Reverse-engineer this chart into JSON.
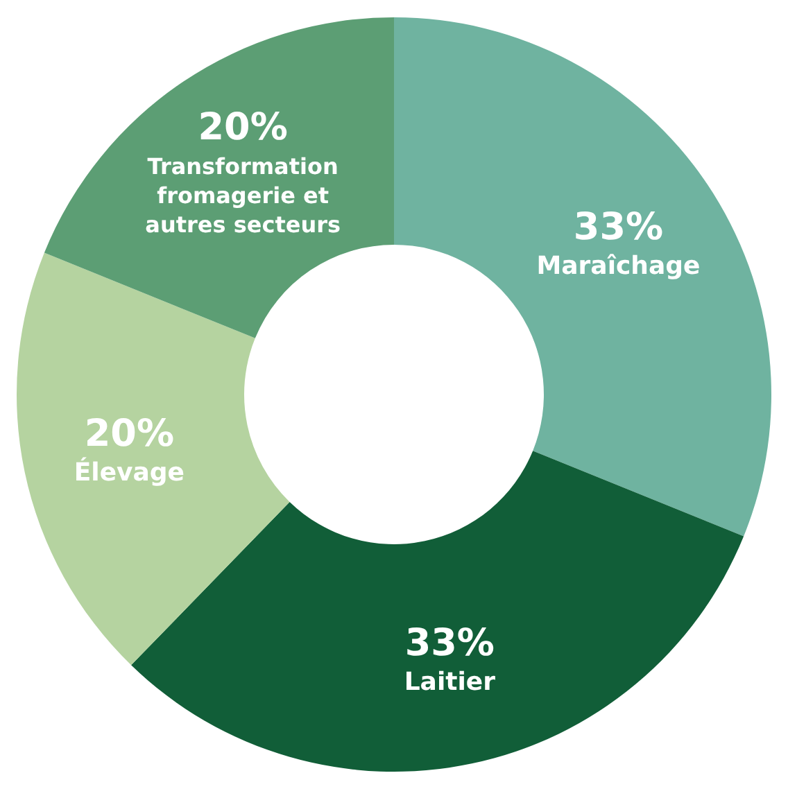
{
  "chart_data": {
    "type": "donut",
    "categories": [
      "Maraîchage",
      "Laitier",
      "Élevage",
      "Transformation fromagerie et autres secteurs"
    ],
    "values": [
      33,
      33,
      20,
      20
    ],
    "colors": [
      "#6fb3a0",
      "#115e38",
      "#b5d3a0",
      "#5c9e74"
    ],
    "value_labels": [
      "33%",
      "33%",
      "20%",
      "20%"
    ],
    "legend": false
  }
}
